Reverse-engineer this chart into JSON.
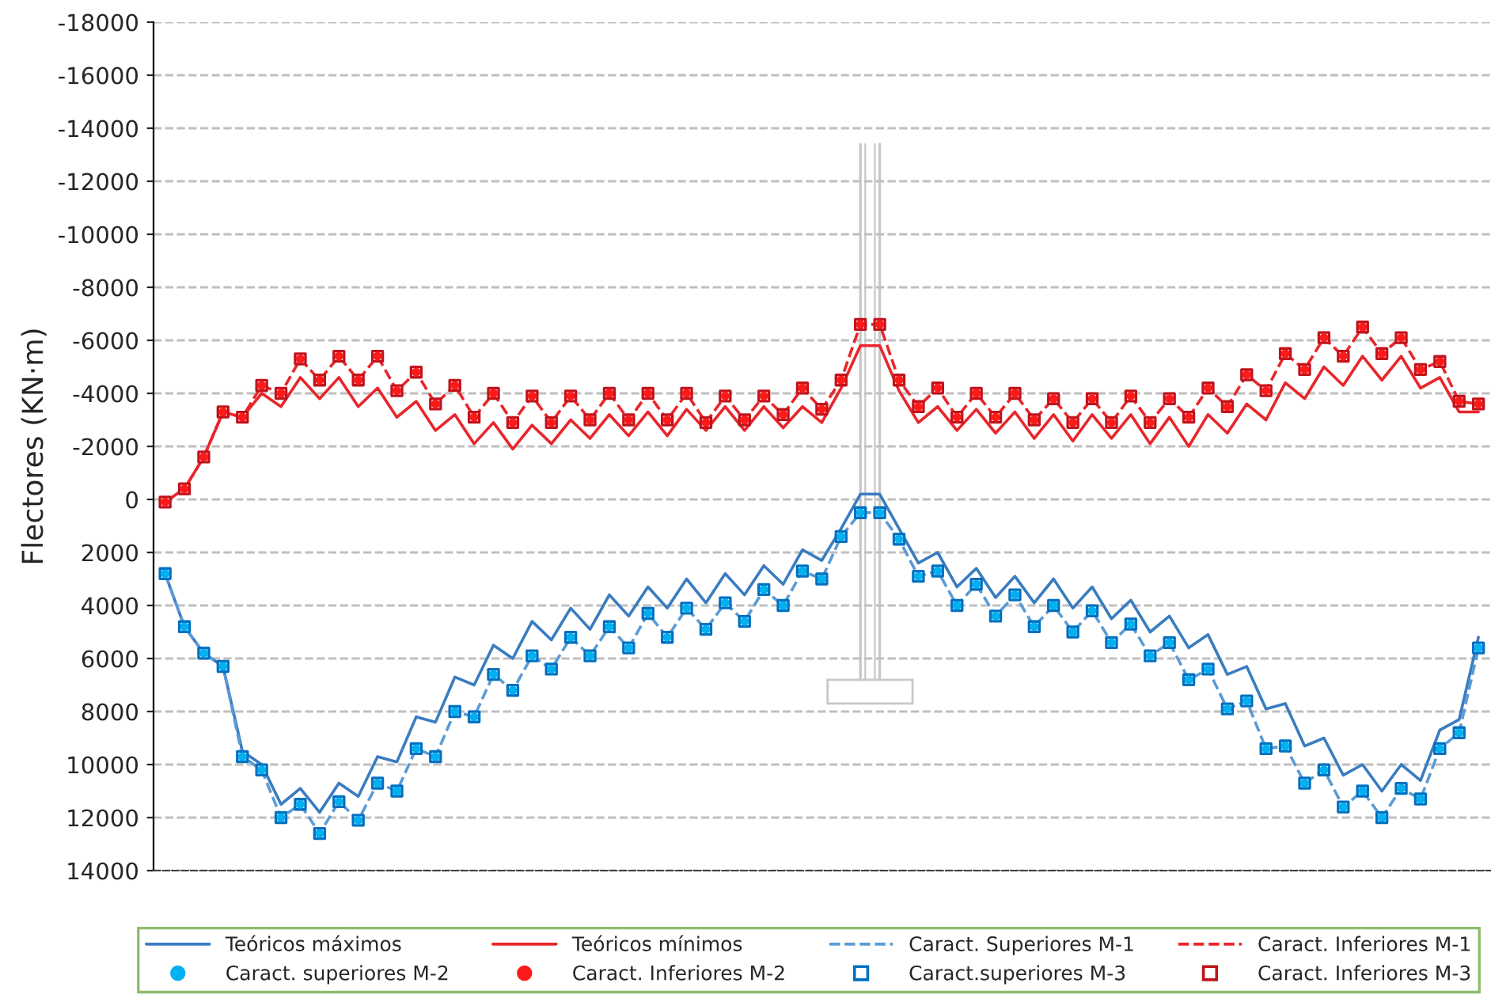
{
  "chart_data": {
    "type": "line",
    "ylabel": "Flectores (KN·m)",
    "categories": [
      null,
      null,
      null,
      null,
      null,
      null,
      null,
      null,
      null,
      null,
      null,
      null,
      null,
      null,
      null,
      null,
      null,
      null,
      null,
      null,
      null,
      null,
      null,
      null,
      null,
      null,
      null,
      null,
      null,
      null,
      null,
      null,
      null,
      null,
      null,
      null,
      null,
      null,
      null,
      null,
      null,
      null,
      null,
      null,
      null,
      null,
      null,
      null,
      null,
      null,
      null,
      null,
      null,
      null,
      null,
      null,
      null,
      null,
      null,
      null,
      null,
      null,
      null,
      null,
      null,
      null,
      null,
      null,
      null
    ],
    "ylim": [
      14000,
      -18000
    ],
    "yticks": [
      -18000,
      -16000,
      -14000,
      -12000,
      -10000,
      -8000,
      -6000,
      -4000,
      -2000,
      0,
      2000,
      4000,
      6000,
      8000,
      10000,
      12000,
      14000
    ],
    "grid": "y",
    "legend": "bottom",
    "series": [
      {
        "name": "Teóricos máximos",
        "line_style": "solid",
        "marker": "none",
        "color": "#3a7cc0",
        "values": [
          2800,
          4800,
          5800,
          6300,
          9500,
          10000,
          11500,
          10900,
          11800,
          10700,
          11200,
          9700,
          9900,
          8200,
          8400,
          6700,
          7000,
          5500,
          6000,
          4600,
          5300,
          4100,
          4900,
          3600,
          4400,
          3300,
          4100,
          3000,
          3900,
          2800,
          3600,
          2500,
          3200,
          1900,
          2300,
          1100,
          -200,
          -200,
          1100,
          2400,
          2000,
          3300,
          2600,
          3700,
          2900,
          3900,
          3000,
          4100,
          3300,
          4500,
          3800,
          5000,
          4400,
          5600,
          5100,
          6600,
          6300,
          7900,
          7700,
          9300,
          9000,
          10400,
          10000,
          11000,
          10000,
          10600,
          8700,
          8300,
          5200
        ]
      },
      {
        "name": "Teóricos mínimos",
        "line_style": "solid",
        "marker": "none",
        "color": "#e8262b",
        "values": [
          100,
          -400,
          -1600,
          -3300,
          -3100,
          -4000,
          -3500,
          -4600,
          -3800,
          -4600,
          -3500,
          -4200,
          -3100,
          -3700,
          -2600,
          -3200,
          -2100,
          -2900,
          -1900,
          -2800,
          -2100,
          -3000,
          -2300,
          -3200,
          -2400,
          -3300,
          -2400,
          -3400,
          -2600,
          -3500,
          -2600,
          -3500,
          -2700,
          -3500,
          -2900,
          -4200,
          -5800,
          -5800,
          -4100,
          -2900,
          -3500,
          -2600,
          -3400,
          -2500,
          -3300,
          -2300,
          -3200,
          -2200,
          -3200,
          -2300,
          -3200,
          -2100,
          -3100,
          -2000,
          -3200,
          -2500,
          -3600,
          -3000,
          -4400,
          -3800,
          -5000,
          -4300,
          -5400,
          -4500,
          -5400,
          -4200,
          -4600,
          -3300,
          -3300
        ]
      },
      {
        "name": "Caract. Superiores M-1",
        "line_style": "dashed",
        "marker": "none",
        "color": "#5b9bd5",
        "values": [
          2800,
          4800,
          5800,
          6300,
          9700,
          10200,
          12000,
          11500,
          12600,
          11400,
          12100,
          10700,
          11000,
          9400,
          9700,
          8000,
          8200,
          6600,
          7200,
          5900,
          6400,
          5200,
          5900,
          4800,
          5600,
          4300,
          5200,
          4100,
          4900,
          3900,
          4600,
          3400,
          4000,
          2700,
          3000,
          1400,
          500,
          500,
          1500,
          2900,
          2700,
          4000,
          3200,
          4400,
          3600,
          4800,
          4000,
          5000,
          4200,
          5400,
          4700,
          5900,
          5400,
          6800,
          6400,
          7900,
          7600,
          9400,
          9300,
          10700,
          10200,
          11600,
          11000,
          12000,
          10900,
          11300,
          9400,
          8800,
          5600
        ]
      },
      {
        "name": "Caract. Inferiores M-1",
        "line_style": "dashed",
        "marker": "none",
        "color": "#e8262b",
        "values": [
          100,
          -400,
          -1600,
          -3300,
          -3100,
          -4300,
          -4000,
          -5300,
          -4500,
          -5400,
          -4500,
          -5400,
          -4100,
          -4800,
          -3600,
          -4300,
          -3100,
          -4000,
          -2900,
          -3900,
          -2900,
          -3900,
          -3000,
          -4000,
          -3000,
          -4000,
          -3000,
          -4000,
          -2900,
          -3900,
          -3000,
          -3900,
          -3200,
          -4200,
          -3400,
          -4500,
          -6600,
          -6600,
          -4500,
          -3500,
          -4200,
          -3100,
          -4000,
          -3100,
          -4000,
          -3000,
          -3800,
          -2900,
          -3800,
          -2900,
          -3900,
          -2900,
          -3800,
          -3100,
          -4200,
          -3500,
          -4700,
          -4100,
          -5500,
          -4900,
          -6100,
          -5400,
          -6500,
          -5500,
          -6100,
          -4900,
          -5200,
          -3700,
          -3600
        ]
      },
      {
        "name": "Caract. superiores M-2",
        "type": "scatter",
        "marker": "circle",
        "color": "#00b0f0",
        "values": [
          2800,
          4800,
          5800,
          6300,
          9700,
          10200,
          12000,
          11500,
          12600,
          11400,
          12100,
          10700,
          11000,
          9400,
          9700,
          8000,
          8200,
          6600,
          7200,
          5900,
          6400,
          5200,
          5900,
          4800,
          5600,
          4300,
          5200,
          4100,
          4900,
          3900,
          4600,
          3400,
          4000,
          2700,
          3000,
          1400,
          500,
          500,
          1500,
          2900,
          2700,
          4000,
          3200,
          4400,
          3600,
          4800,
          4000,
          5000,
          4200,
          5400,
          4700,
          5900,
          5400,
          6800,
          6400,
          7900,
          7600,
          9400,
          9300,
          10700,
          10200,
          11600,
          11000,
          12000,
          10900,
          11300,
          9400,
          8800,
          5600
        ]
      },
      {
        "name": "Caract. Inferiores M-2",
        "type": "scatter",
        "marker": "circle",
        "color": "#ff1a1a",
        "values": [
          100,
          -400,
          -1600,
          -3300,
          -3100,
          -4300,
          -4000,
          -5300,
          -4500,
          -5400,
          -4500,
          -5400,
          -4100,
          -4800,
          -3600,
          -4300,
          -3100,
          -4000,
          -2900,
          -3900,
          -2900,
          -3900,
          -3000,
          -4000,
          -3000,
          -4000,
          -3000,
          -4000,
          -2900,
          -3900,
          -3000,
          -3900,
          -3200,
          -4200,
          -3400,
          -4500,
          -6600,
          -6600,
          -4500,
          -3500,
          -4200,
          -3100,
          -4000,
          -3100,
          -4000,
          -3000,
          -3800,
          -2900,
          -3800,
          -2900,
          -3900,
          -2900,
          -3800,
          -3100,
          -4200,
          -3500,
          -4700,
          -4100,
          -5500,
          -4900,
          -6100,
          -5400,
          -6500,
          -5500,
          -6100,
          -4900,
          -5200,
          -3700,
          -3600
        ]
      },
      {
        "name": "Caract.superiores M-3",
        "type": "scatter",
        "marker": "square",
        "color": "#0070c0",
        "values": [
          2800,
          4800,
          5800,
          6300,
          9700,
          10200,
          12000,
          11500,
          12600,
          11400,
          12100,
          10700,
          11000,
          9400,
          9700,
          8000,
          8200,
          6600,
          7200,
          5900,
          6400,
          5200,
          5900,
          4800,
          5600,
          4300,
          5200,
          4100,
          4900,
          3900,
          4600,
          3400,
          4000,
          2700,
          3000,
          1400,
          500,
          500,
          1500,
          2900,
          2700,
          4000,
          3200,
          4400,
          3600,
          4800,
          4000,
          5000,
          4200,
          5400,
          4700,
          5900,
          5400,
          6800,
          6400,
          7900,
          7600,
          9400,
          9300,
          10700,
          10200,
          11600,
          11000,
          12000,
          10900,
          11300,
          9400,
          8800,
          5600
        ]
      },
      {
        "name": "Caract. Inferiores M-3",
        "type": "scatter",
        "marker": "square",
        "color": "#c0141c",
        "values": [
          100,
          -400,
          -1600,
          -3300,
          -3100,
          -4300,
          -4000,
          -5300,
          -4500,
          -5400,
          -4500,
          -5400,
          -4100,
          -4800,
          -3600,
          -4300,
          -3100,
          -4000,
          -2900,
          -3900,
          -2900,
          -3900,
          -3000,
          -4000,
          -3000,
          -4000,
          -3000,
          -4000,
          -2900,
          -3900,
          -3000,
          -3900,
          -3200,
          -4200,
          -3400,
          -4500,
          -6600,
          -6600,
          -4500,
          -3500,
          -4200,
          -3100,
          -4000,
          -3100,
          -4000,
          -3000,
          -3800,
          -2900,
          -3800,
          -2900,
          -3900,
          -2900,
          -3800,
          -3100,
          -4200,
          -3500,
          -4700,
          -4100,
          -5500,
          -4900,
          -6100,
          -5400,
          -6500,
          -5500,
          -6100,
          -4900,
          -5200,
          -3700,
          -3600
        ]
      }
    ]
  }
}
